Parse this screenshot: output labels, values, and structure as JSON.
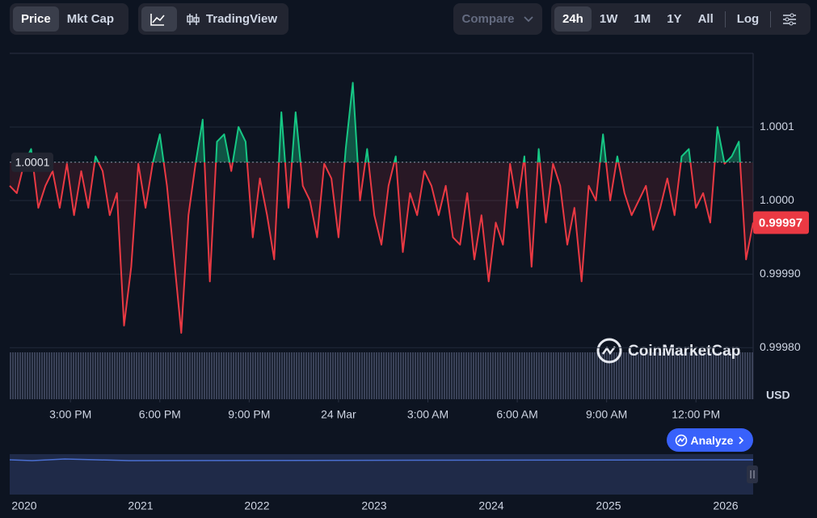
{
  "toolbar": {
    "type_tabs": [
      "Price",
      "Mkt Cap"
    ],
    "tradingview": "TradingView",
    "compare": "Compare",
    "ranges": [
      "24h",
      "1W",
      "1M",
      "1Y",
      "All"
    ],
    "log": "Log"
  },
  "watermark": "CoinMarketCap",
  "analyze": "Analyze",
  "navigator": {
    "labels": [
      "2020",
      "2021",
      "2022",
      "2023",
      "2024",
      "2025",
      "2026"
    ]
  },
  "chart_data": {
    "type": "line",
    "values": [
      1.00002,
      1.00001,
      1.00005,
      1.00007,
      0.99999,
      1.00002,
      1.00004,
      0.99999,
      1.00005,
      0.99998,
      1.00004,
      0.99999,
      1.00006,
      1.00004,
      0.99998,
      1.00001,
      0.99983,
      0.99991,
      1.00005,
      0.99999,
      1.00005,
      1.00009,
      1.00002,
      0.99992,
      0.99982,
      0.99998,
      1.00005,
      1.00011,
      0.99989,
      1.00008,
      1.00009,
      1.00004,
      1.0001,
      1.00008,
      0.99995,
      1.00003,
      0.99998,
      0.99992,
      1.00012,
      0.99999,
      1.00012,
      1.00002,
      1.0,
      0.99995,
      1.00005,
      1.00003,
      0.99995,
      1.00007,
      1.00016,
      1.0,
      1.00007,
      0.99998,
      0.99994,
      1.00002,
      1.00006,
      0.99993,
      1.00001,
      0.99998,
      1.00004,
      1.00002,
      0.99998,
      1.00002,
      0.99995,
      0.99994,
      1.00001,
      0.99992,
      0.99998,
      0.99989,
      0.99997,
      0.99994,
      1.00005,
      0.99999,
      1.00006,
      0.99991,
      1.00007,
      0.99997,
      1.00005,
      1.00002,
      0.99994,
      0.99999,
      0.99989,
      1.00002,
      1.0,
      1.00009,
      1.0,
      1.00006,
      1.00001,
      0.99998,
      1.0,
      1.00002,
      0.99996,
      0.99999,
      1.00003,
      0.99998,
      1.00006,
      1.00007,
      0.99999,
      1.00001,
      0.99997,
      1.0001,
      1.00005,
      1.00006,
      1.00008,
      0.99992,
      0.99997
    ],
    "colors": {
      "above": "#16c784",
      "below": "#ea3943"
    },
    "baseline": {
      "value": 1.000052,
      "label": "1.0001"
    },
    "current_price": 0.99997,
    "currency": "USD",
    "xlim": [
      0,
      104
    ],
    "xticks": [
      {
        "value": 8.5,
        "label": "3:00 PM"
      },
      {
        "value": 21,
        "label": "6:00 PM"
      },
      {
        "value": 33.5,
        "label": "9:00 PM"
      },
      {
        "value": 46,
        "label": "24 Mar"
      },
      {
        "value": 58.5,
        "label": "3:00 AM"
      },
      {
        "value": 71,
        "label": "6:00 AM"
      },
      {
        "value": 83.5,
        "label": "9:00 AM"
      },
      {
        "value": 96,
        "label": "12:00 PM"
      }
    ],
    "ylim": [
      0.99973,
      1.0002
    ],
    "yticks": [
      1.0001,
      {
        "value": 1.0,
        "label": "1.0000"
      },
      {
        "value": 0.9999,
        "label": "0.99990"
      },
      {
        "value": 0.9998,
        "label": "0.99980"
      }
    ],
    "grid": true
  }
}
